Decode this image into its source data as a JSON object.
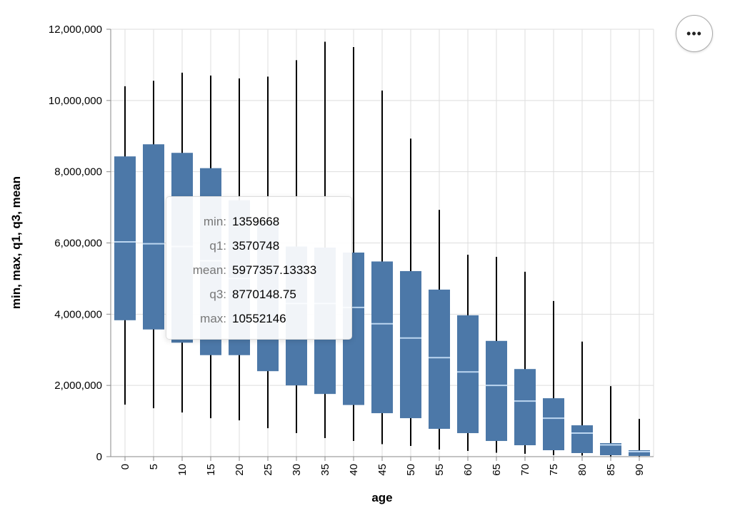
{
  "chart_data": {
    "type": "boxplot",
    "xlabel": "age",
    "ylabel": "min, max, q1, q3, mean",
    "ylim": [
      0,
      12000000
    ],
    "yticks": [
      "0",
      "2,000,000",
      "4,000,000",
      "6,000,000",
      "8,000,000",
      "10,000,000",
      "12,000,000"
    ],
    "ytick_values": [
      0,
      2000000,
      4000000,
      6000000,
      8000000,
      10000000,
      12000000
    ],
    "grid": true,
    "categories": [
      "0",
      "5",
      "10",
      "15",
      "20",
      "25",
      "30",
      "35",
      "40",
      "45",
      "50",
      "55",
      "60",
      "65",
      "70",
      "75",
      "80",
      "85",
      "90"
    ],
    "series": [
      {
        "name": "min",
        "values": [
          1460000,
          1359668,
          1240000,
          1080000,
          1020000,
          800000,
          660000,
          520000,
          440000,
          350000,
          300000,
          200000,
          160000,
          110000,
          80000,
          40000,
          30000,
          10000,
          5000
        ]
      },
      {
        "name": "q1",
        "values": [
          3830000,
          3570748,
          3200000,
          2850000,
          2850000,
          2400000,
          2000000,
          1760000,
          1450000,
          1220000,
          1080000,
          780000,
          660000,
          440000,
          320000,
          180000,
          100000,
          40000,
          20000
        ]
      },
      {
        "name": "mean",
        "values": [
          6030000,
          5977357.13333,
          5900000,
          5500000,
          5000000,
          4600000,
          4300000,
          4300000,
          4190000,
          3730000,
          3330000,
          2780000,
          2380000,
          2000000,
          1560000,
          1080000,
          660000,
          330000,
          140000
        ]
      },
      {
        "name": "q3",
        "values": [
          8430000,
          8770148.75,
          8530000,
          8100000,
          7200000,
          6600000,
          5900000,
          5870000,
          5730000,
          5480000,
          5210000,
          4690000,
          3970000,
          3250000,
          2460000,
          1640000,
          880000,
          380000,
          180000
        ]
      },
      {
        "name": "max",
        "values": [
          10400000,
          10552146,
          10780000,
          10700000,
          10620000,
          10670000,
          11130000,
          11650000,
          11500000,
          10280000,
          8930000,
          6930000,
          5670000,
          5610000,
          5190000,
          4370000,
          3230000,
          1980000,
          1060000
        ]
      }
    ],
    "color": "#4c78a8",
    "median_color": "#bcd6f0"
  },
  "tooltip": {
    "rows": [
      {
        "key": "min:",
        "value": "1359668"
      },
      {
        "key": "q1:",
        "value": "3570748"
      },
      {
        "key": "mean:",
        "value": "5977357.13333"
      },
      {
        "key": "q3:",
        "value": "8770148.75"
      },
      {
        "key": "max:",
        "value": "10552146"
      }
    ]
  },
  "menu": {
    "label": "•••"
  }
}
